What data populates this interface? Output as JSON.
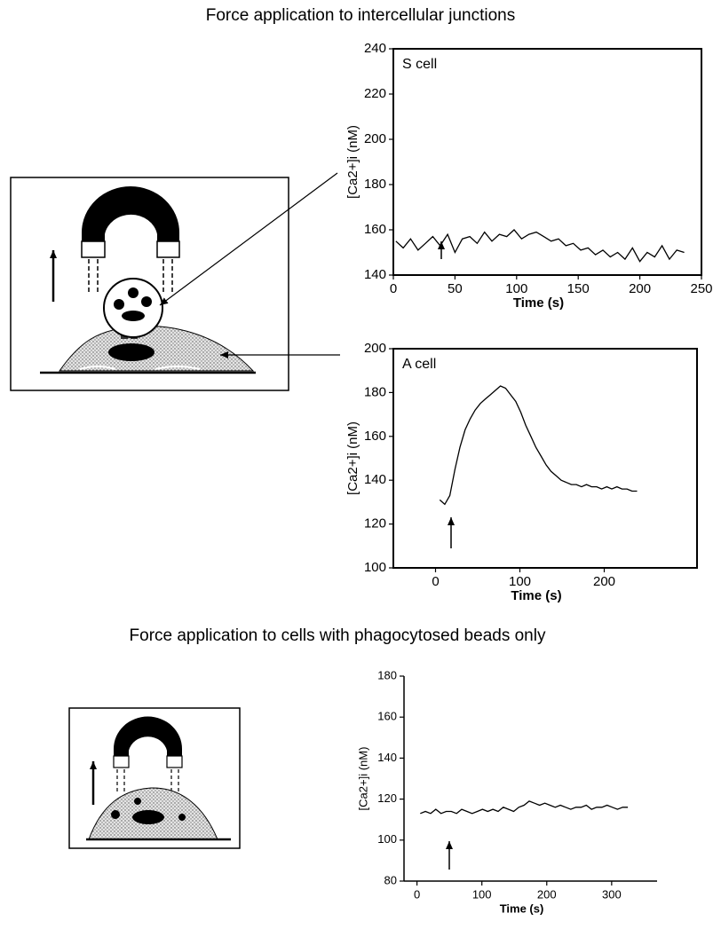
{
  "headings": [
    "Force application to intercellular junctions",
    "Force application to cells with phagocytosed beads only"
  ],
  "chart_data": [
    {
      "type": "line",
      "title": "S cell",
      "xlabel": "Time (s)",
      "ylabel": "[Ca2+]i (nM)",
      "x": [
        2,
        8,
        14,
        20,
        26,
        32,
        38,
        44,
        50,
        56,
        62,
        68,
        74,
        80,
        86,
        92,
        98,
        104,
        110,
        116,
        122,
        128,
        134,
        140,
        146,
        152,
        158,
        164,
        170,
        176,
        182,
        188,
        194,
        200,
        206,
        212,
        218,
        224,
        230,
        236
      ],
      "series": [
        {
          "color": "#000000",
          "values": [
            155,
            152,
            156,
            151,
            154,
            157,
            153,
            158,
            150,
            156,
            157,
            154,
            159,
            155,
            158,
            157,
            160,
            156,
            158,
            159,
            157,
            155,
            156,
            153,
            154,
            151,
            152,
            149,
            151,
            148,
            150,
            147,
            152,
            146,
            150,
            148,
            153,
            147,
            151,
            150
          ]
        }
      ],
      "xlim": [
        0,
        250
      ],
      "xticks": [
        0,
        50,
        100,
        150,
        200,
        250
      ],
      "ylim": [
        140,
        240
      ],
      "yticks": [
        140,
        160,
        180,
        200,
        220,
        240
      ]
    },
    {
      "type": "line",
      "title": "A cell",
      "xlabel": "Time (s)",
      "ylabel": "[Ca2+]i (nM)",
      "x": [
        5,
        11,
        17,
        23,
        29,
        35,
        41,
        47,
        53,
        59,
        65,
        71,
        77,
        83,
        89,
        95,
        101,
        107,
        113,
        119,
        125,
        131,
        137,
        143,
        149,
        155,
        161,
        167,
        173,
        179,
        185,
        191,
        197,
        203,
        209,
        215,
        221,
        227,
        233,
        239
      ],
      "series": [
        {
          "color": "#000000",
          "values": [
            131,
            129,
            133,
            145,
            155,
            163,
            168,
            172,
            175,
            177,
            179,
            181,
            183,
            182,
            179,
            176,
            171,
            165,
            160,
            155,
            151,
            147,
            144,
            142,
            140,
            139,
            138,
            138,
            137,
            138,
            137,
            137,
            136,
            137,
            136,
            137,
            136,
            136,
            135,
            135
          ]
        }
      ],
      "xlim": [
        -50,
        310
      ],
      "xticks": [
        0,
        100,
        200
      ],
      "ylim": [
        100,
        200
      ],
      "yticks": [
        100,
        120,
        140,
        160,
        180,
        200
      ]
    },
    {
      "type": "line",
      "xlabel": "Time (s)",
      "ylabel": "[Ca2+]i (nM)",
      "x": [
        5,
        13,
        21,
        29,
        37,
        45,
        53,
        61,
        69,
        77,
        85,
        93,
        101,
        109,
        117,
        125,
        133,
        141,
        149,
        157,
        165,
        173,
        181,
        189,
        197,
        205,
        213,
        221,
        229,
        237,
        245,
        253,
        261,
        269,
        277,
        285,
        293,
        301,
        309,
        317,
        325
      ],
      "series": [
        {
          "color": "#000000",
          "values": [
            113,
            114,
            113,
            115,
            113,
            114,
            114,
            113,
            115,
            114,
            113,
            114,
            115,
            114,
            115,
            114,
            116,
            115,
            114,
            116,
            117,
            119,
            118,
            117,
            118,
            117,
            116,
            117,
            116,
            115,
            116,
            116,
            117,
            115,
            116,
            116,
            117,
            116,
            115,
            116,
            116
          ]
        }
      ],
      "xlim": [
        -20,
        370
      ],
      "xticks": [
        0,
        100,
        200,
        300
      ],
      "ylim": [
        80,
        180
      ],
      "yticks": [
        80,
        100,
        120,
        140,
        160,
        180
      ]
    }
  ]
}
